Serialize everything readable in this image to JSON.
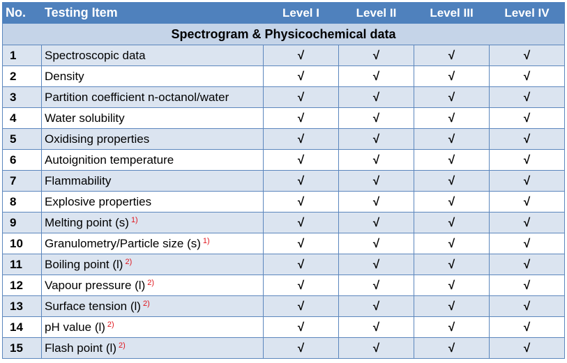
{
  "header": {
    "no": "No.",
    "item": "Testing Item",
    "levels": [
      "Level I",
      "Level II",
      "Level III",
      "Level IV"
    ]
  },
  "section_title": "Spectrogram & Physicochemical data",
  "check_mark": "√",
  "rows": [
    {
      "no": "1",
      "item": "Spectroscopic data",
      "note": ""
    },
    {
      "no": "2",
      "item": "Density",
      "note": ""
    },
    {
      "no": "3",
      "item": "Partition coefficient n-octanol/water",
      "note": ""
    },
    {
      "no": "4",
      "item": "Water solubility",
      "note": ""
    },
    {
      "no": "5",
      "item": "Oxidising properties",
      "note": ""
    },
    {
      "no": "6",
      "item": "Autoignition temperature",
      "note": ""
    },
    {
      "no": "7",
      "item": "Flammability",
      "note": ""
    },
    {
      "no": "8",
      "item": "Explosive properties",
      "note": ""
    },
    {
      "no": "9",
      "item": "Melting point (s)",
      "note": "1)"
    },
    {
      "no": "10",
      "item": "Granulometry/Particle size (s)",
      "note": "1)"
    },
    {
      "no": "11",
      "item": "Boiling point (l)",
      "note": "2)"
    },
    {
      "no": "12",
      "item": "Vapour pressure (l)",
      "note": "2)"
    },
    {
      "no": "13",
      "item": "Surface tension (l)",
      "note": "2)"
    },
    {
      "no": "14",
      "item": "pH value (l)",
      "note": "2)"
    },
    {
      "no": "15",
      "item": "Flash point (l)",
      "note": "2)"
    }
  ],
  "colors": {
    "header_bg": "#4f81bd",
    "section_bg": "#c5d4e8",
    "band_bg": "#dbe4f0",
    "note_color": "#e0151c"
  }
}
